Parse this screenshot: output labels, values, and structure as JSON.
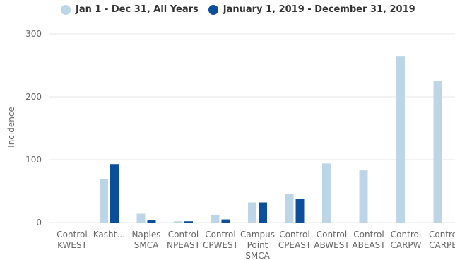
{
  "chart_data": {
    "type": "bar",
    "ylabel": "Incidence",
    "ylim": [
      0,
      300
    ],
    "yticks": [
      0,
      100,
      200,
      300
    ],
    "grid": true,
    "legend_position": "top",
    "categories": [
      [
        "Control",
        "KWEST"
      ],
      [
        "Kasht…"
      ],
      [
        "Naples",
        "SMCA"
      ],
      [
        "Control",
        "NPEAST"
      ],
      [
        "Control",
        "CPWEST"
      ],
      [
        "Campus",
        "Point",
        "SMCA"
      ],
      [
        "Control",
        "CPEAST"
      ],
      [
        "Control",
        "ABWEST"
      ],
      [
        "Control",
        "ABEAST"
      ],
      [
        "Control",
        "CARPW"
      ],
      [
        "Contro",
        "CARPE"
      ]
    ],
    "series": [
      {
        "name": "Jan 1 - Dec 31, All Years",
        "color": "#bcd6e8",
        "values": [
          0,
          69,
          14,
          2,
          12,
          32,
          45,
          94,
          83,
          265,
          225
        ]
      },
      {
        "name": "January 1, 2019 - December 31, 2019",
        "color": "#0b4f9c",
        "values": [
          0,
          93,
          4,
          2,
          5,
          32,
          38,
          0,
          0,
          0,
          0
        ]
      }
    ]
  }
}
